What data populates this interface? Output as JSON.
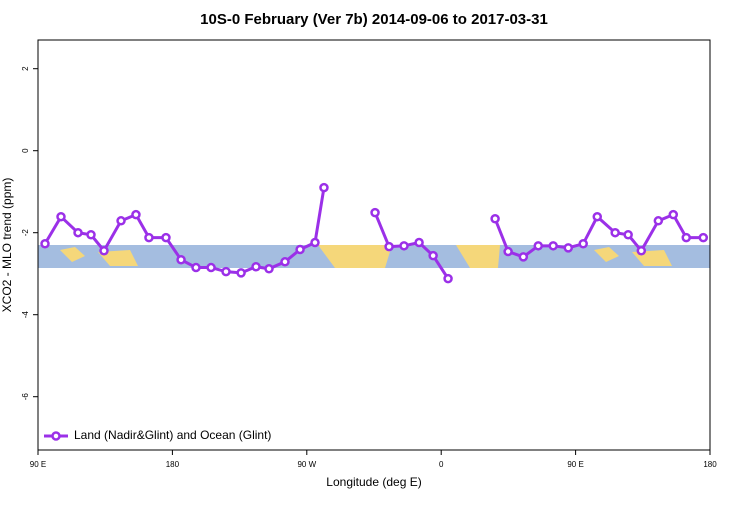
{
  "chart_data": {
    "type": "line",
    "title": "10S-0 February (Ver 7b)   2014-09-06 to 2017-03-31",
    "x_label": "Longitude (deg E)",
    "y_label": "XCO2 - MLO trend (ppm)",
    "xlim": [
      90,
      540
    ],
    "ylim": [
      -7.3,
      2.7
    ],
    "xticks": [
      {
        "value": 90,
        "label": "90 E"
      },
      {
        "value": 180,
        "label": "180"
      },
      {
        "value": 270,
        "label": "90 W"
      },
      {
        "value": 360,
        "label": "0"
      },
      {
        "value": 450,
        "label": "90 E"
      },
      {
        "value": 540,
        "label": "180"
      }
    ],
    "yticks": [
      -6,
      -4,
      -2,
      0,
      2
    ],
    "legend": "bottom-left",
    "series": [
      {
        "name": "Land (Nadir&Glint) and Ocean (Glint)",
        "color": "#9b30e8",
        "x": [
          94.7,
          105.4,
          116.8,
          125.5,
          134.2,
          145.6,
          155.6,
          164.3,
          175.7,
          185.8,
          195.8,
          205.9,
          215.9,
          226.0,
          236.0,
          244.7,
          255.4,
          265.5,
          275.5,
          281.5,
          null,
          315.7,
          325.1,
          335.1,
          345.2,
          354.6,
          364.6,
          null,
          396.1,
          404.8,
          415.0,
          425.0,
          435.0,
          445.1,
          455.1,
          464.5,
          476.5,
          485.2,
          494.0,
          505.4,
          515.4,
          524.1,
          535.5
        ],
        "values": [
          -2.27,
          -1.61,
          -2.0,
          -2.05,
          -2.44,
          -1.71,
          -1.56,
          -2.12,
          -2.12,
          -2.66,
          -2.85,
          -2.85,
          -2.95,
          -2.98,
          -2.83,
          -2.88,
          -2.71,
          -2.41,
          -2.24,
          -0.9,
          null,
          -1.51,
          -2.34,
          -2.32,
          -2.24,
          -2.56,
          -3.12,
          null,
          -1.66,
          -2.46,
          -2.59,
          -2.32,
          -2.32,
          -2.37,
          -2.27,
          -1.61,
          -2.0,
          -2.05,
          -2.44,
          -1.71,
          -1.56,
          -2.12,
          -2.12
        ]
      }
    ]
  }
}
